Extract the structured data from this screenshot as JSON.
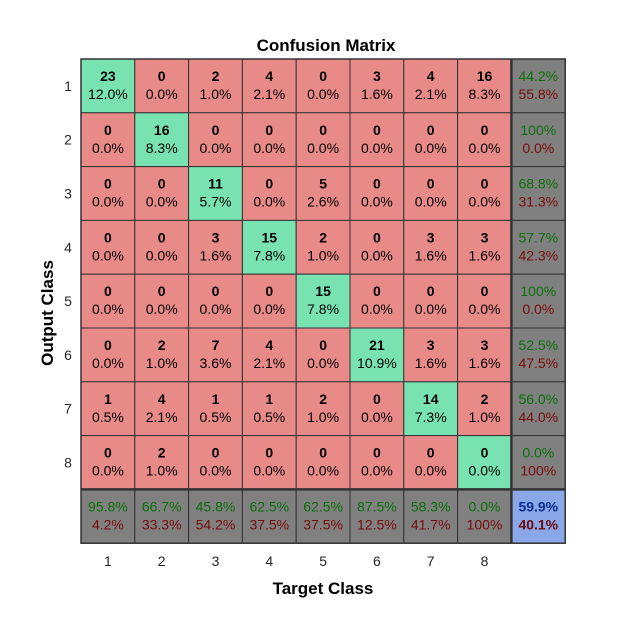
{
  "chart_data": {
    "type": "heatmap",
    "title": "Confusion Matrix",
    "xlabel": "Target Class",
    "ylabel": "Output Class",
    "x_ticks": [
      "1",
      "2",
      "3",
      "4",
      "5",
      "6",
      "7",
      "8"
    ],
    "y_ticks": [
      "1",
      "2",
      "3",
      "4",
      "5",
      "6",
      "7",
      "8"
    ],
    "matrix": [
      [
        23,
        0,
        2,
        4,
        0,
        3,
        4,
        16
      ],
      [
        0,
        16,
        0,
        0,
        0,
        0,
        0,
        0
      ],
      [
        0,
        0,
        11,
        0,
        5,
        0,
        0,
        0
      ],
      [
        0,
        0,
        3,
        15,
        2,
        0,
        3,
        3
      ],
      [
        0,
        0,
        0,
        0,
        15,
        0,
        0,
        0
      ],
      [
        0,
        2,
        7,
        4,
        0,
        21,
        3,
        3
      ],
      [
        1,
        4,
        1,
        1,
        2,
        0,
        14,
        2
      ],
      [
        0,
        2,
        0,
        0,
        0,
        0,
        0,
        0
      ]
    ],
    "cell_percents": [
      [
        "12.0%",
        "0.0%",
        "1.0%",
        "2.1%",
        "0.0%",
        "1.6%",
        "2.1%",
        "8.3%"
      ],
      [
        "0.0%",
        "8.3%",
        "0.0%",
        "0.0%",
        "0.0%",
        "0.0%",
        "0.0%",
        "0.0%"
      ],
      [
        "0.0%",
        "0.0%",
        "5.7%",
        "0.0%",
        "2.6%",
        "0.0%",
        "0.0%",
        "0.0%"
      ],
      [
        "0.0%",
        "0.0%",
        "1.6%",
        "7.8%",
        "1.0%",
        "0.0%",
        "1.6%",
        "1.6%"
      ],
      [
        "0.0%",
        "0.0%",
        "0.0%",
        "0.0%",
        "7.8%",
        "0.0%",
        "0.0%",
        "0.0%"
      ],
      [
        "0.0%",
        "1.0%",
        "3.6%",
        "2.1%",
        "0.0%",
        "10.9%",
        "1.6%",
        "1.6%"
      ],
      [
        "0.5%",
        "2.1%",
        "0.5%",
        "0.5%",
        "1.0%",
        "0.0%",
        "7.3%",
        "1.0%"
      ],
      [
        "0.0%",
        "1.0%",
        "0.0%",
        "0.0%",
        "0.0%",
        "0.0%",
        "0.0%",
        "0.0%"
      ]
    ],
    "row_summary": [
      [
        "44.2%",
        "55.8%"
      ],
      [
        "100%",
        "0.0%"
      ],
      [
        "68.8%",
        "31.3%"
      ],
      [
        "57.7%",
        "42.3%"
      ],
      [
        "100%",
        "0.0%"
      ],
      [
        "52.5%",
        "47.5%"
      ],
      [
        "56.0%",
        "44.0%"
      ],
      [
        "0.0%",
        "100%"
      ]
    ],
    "col_summary": [
      [
        "95.8%",
        "4.2%"
      ],
      [
        "66.7%",
        "33.3%"
      ],
      [
        "45.8%",
        "54.2%"
      ],
      [
        "62.5%",
        "37.5%"
      ],
      [
        "62.5%",
        "37.5%"
      ],
      [
        "87.5%",
        "12.5%"
      ],
      [
        "58.3%",
        "41.7%"
      ],
      [
        "0.0%",
        "100%"
      ]
    ],
    "overall": [
      "59.9%",
      "40.1%"
    ],
    "grid": true,
    "legend": "none"
  },
  "colors": {
    "diagonal": "#78e3b0",
    "off_diagonal": "#e88a88",
    "summary": "#808080",
    "overall": "#8aa7e8",
    "correct_text": "#0a6f0a",
    "wrong_text": "#7a0b0b",
    "overall_correct_text": "#0b2f8e",
    "overall_wrong_text": "#6b0a0a",
    "grid_line": "#333333"
  }
}
